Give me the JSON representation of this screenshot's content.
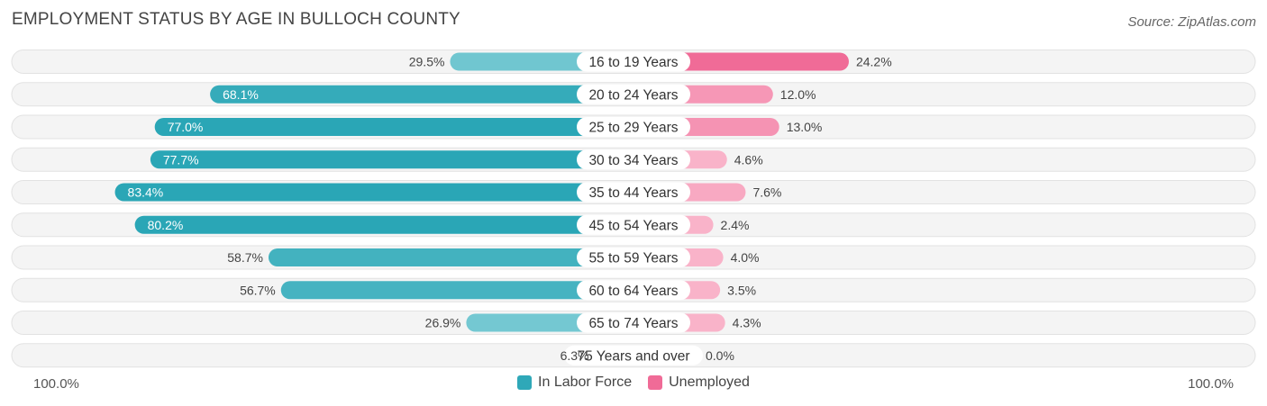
{
  "header": {
    "title": "EMPLOYMENT STATUS BY AGE IN BULLOCH COUNTY",
    "source": "Source: ZipAtlas.com"
  },
  "axis": {
    "left_label": "100.0%",
    "right_label": "100.0%"
  },
  "legend": [
    {
      "name": "In Labor Force",
      "color": "#2fa8b8"
    },
    {
      "name": "Unemployed",
      "color": "#f06b97"
    }
  ],
  "chart_data": {
    "type": "bar",
    "orientation": "horizontal-diverging",
    "title": "EMPLOYMENT STATUS BY AGE IN BULLOCH COUNTY",
    "categories": [
      "16 to 19 Years",
      "20 to 24 Years",
      "25 to 29 Years",
      "30 to 34 Years",
      "35 to 44 Years",
      "45 to 54 Years",
      "55 to 59 Years",
      "60 to 64 Years",
      "65 to 74 Years",
      "75 Years and over"
    ],
    "series": [
      {
        "name": "In Labor Force",
        "side": "left",
        "values": [
          29.5,
          68.1,
          77.0,
          77.7,
          83.4,
          80.2,
          58.7,
          56.7,
          26.9,
          6.3
        ],
        "labels": [
          "29.5%",
          "68.1%",
          "77.0%",
          "77.7%",
          "83.4%",
          "80.2%",
          "58.7%",
          "56.7%",
          "26.9%",
          "6.3%"
        ]
      },
      {
        "name": "Unemployed",
        "side": "right",
        "values": [
          24.2,
          12.0,
          13.0,
          4.6,
          7.6,
          2.4,
          4.0,
          3.5,
          4.3,
          0.0
        ],
        "labels": [
          "24.2%",
          "12.0%",
          "13.0%",
          "4.6%",
          "7.6%",
          "2.4%",
          "4.0%",
          "3.5%",
          "4.3%",
          "0.0%"
        ]
      }
    ],
    "xlim": [
      -100,
      100
    ],
    "legend_position": "bottom-center"
  }
}
